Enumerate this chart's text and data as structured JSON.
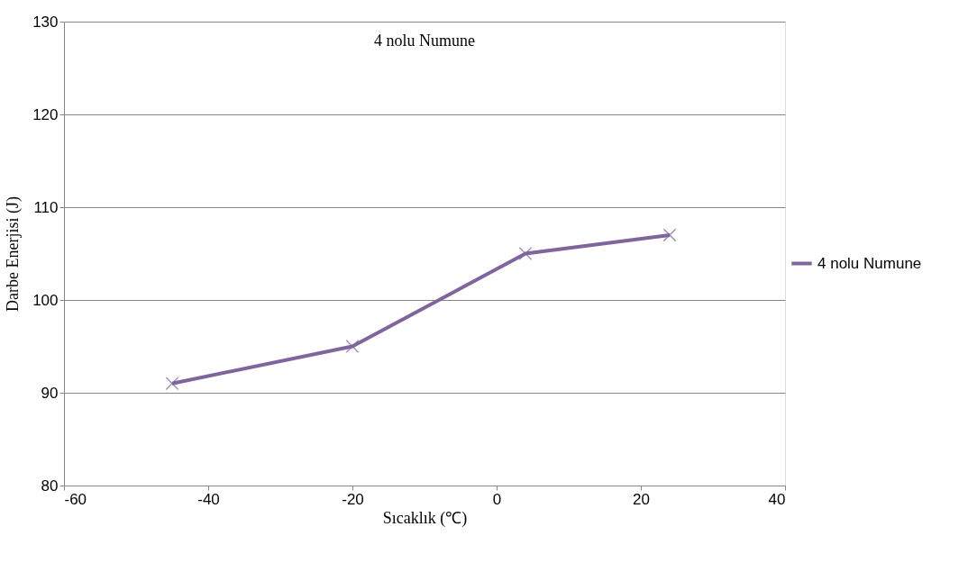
{
  "chart_data": {
    "type": "line",
    "title": "4 nolu Numune",
    "xlabel": "Sıcaklık (℃)",
    "ylabel": "Darbe Enerjisi (J)",
    "x": [
      -45,
      -20,
      4,
      24
    ],
    "series": [
      {
        "name": "4 nolu Numune",
        "color": "#8064a2",
        "values": [
          91,
          95,
          105,
          107
        ]
      }
    ],
    "xlim": [
      -60,
      40
    ],
    "xticks": [
      -60,
      -40,
      -20,
      0,
      20,
      40
    ],
    "ylim": [
      80,
      130
    ],
    "yticks": [
      80,
      90,
      100,
      110,
      120,
      130
    ],
    "grid": "y",
    "legend": "right",
    "marker": "cross",
    "line_style": "solid"
  }
}
